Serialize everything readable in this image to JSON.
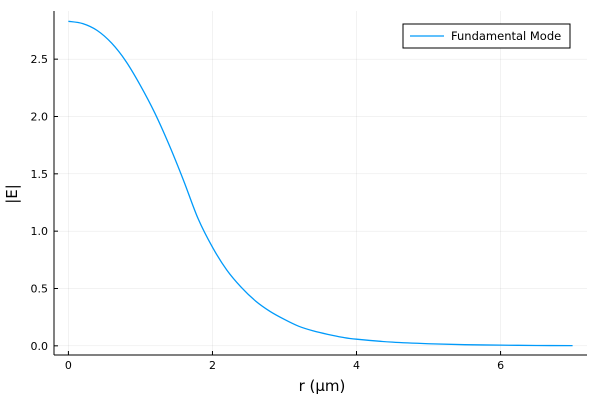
{
  "chart_data": {
    "type": "line",
    "xlabel": "r (μm)",
    "ylabel": "|E|",
    "xlim": [
      -0.2,
      7.2
    ],
    "ylim": [
      -0.08,
      2.92
    ],
    "xticks": [
      0,
      2,
      4,
      6
    ],
    "xtick_labels": [
      "0",
      "2",
      "4",
      "6"
    ],
    "yticks": [
      0.0,
      0.5,
      1.0,
      1.5,
      2.0,
      2.5
    ],
    "ytick_labels": [
      "0.0",
      "0.5",
      "1.0",
      "1.5",
      "2.0",
      "2.5"
    ],
    "grid": true,
    "legend_position": "top-right",
    "series": [
      {
        "name": "Fundamental Mode",
        "color": "#009AFA",
        "x": [
          0,
          0.2,
          0.4,
          0.6,
          0.8,
          1.0,
          1.2,
          1.4,
          1.6,
          1.8,
          2.0,
          2.2,
          2.4,
          2.6,
          2.8,
          3.0,
          3.2,
          3.4,
          3.6,
          3.8,
          4.0,
          4.5,
          5.0,
          5.5,
          6.0,
          6.5,
          7.0
        ],
        "y": [
          2.83,
          2.81,
          2.75,
          2.64,
          2.48,
          2.27,
          2.03,
          1.75,
          1.44,
          1.11,
          0.86,
          0.66,
          0.51,
          0.39,
          0.3,
          0.23,
          0.17,
          0.13,
          0.1,
          0.075,
          0.058,
          0.032,
          0.018,
          0.01,
          0.006,
          0.003,
          0.002
        ]
      }
    ]
  }
}
